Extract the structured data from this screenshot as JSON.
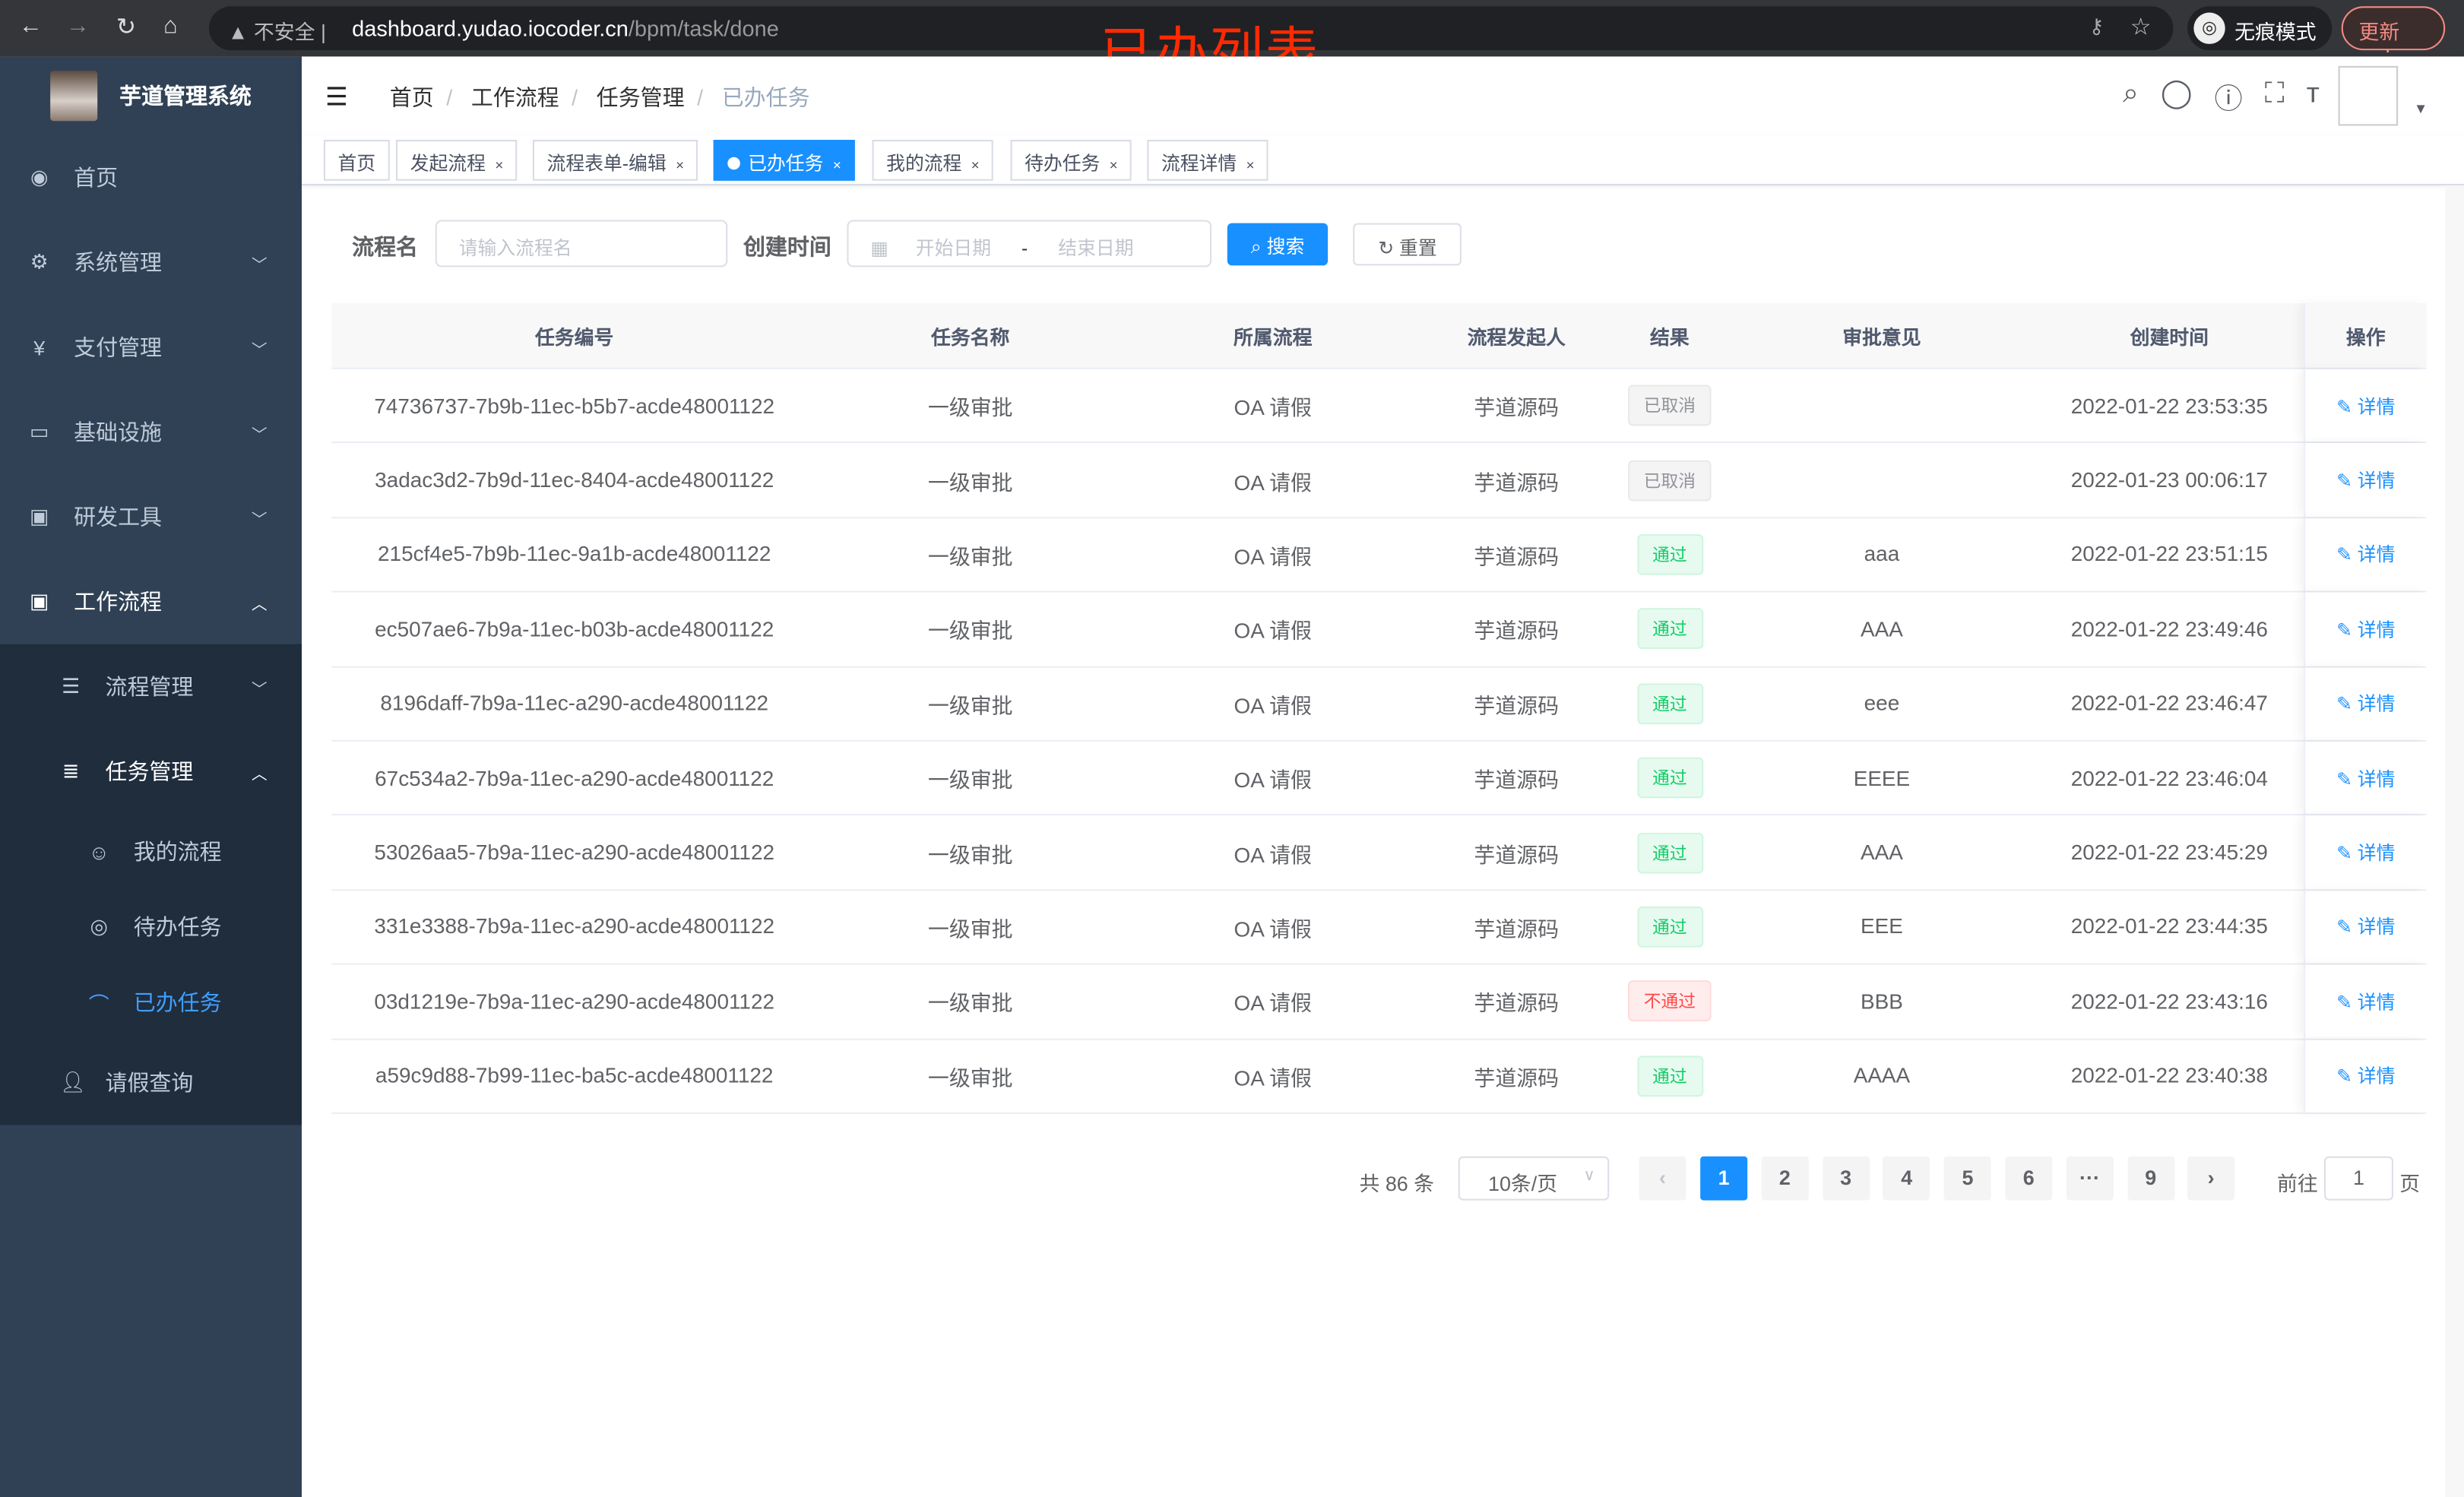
{
  "browser": {
    "back_icon": "arrow-left",
    "forward_icon": "arrow-right",
    "reload_icon": "reload",
    "home_icon": "home",
    "security": "不安全",
    "url_host": "dashboard.yudao.iocoder.cn",
    "url_path": "/bpm/task/done",
    "incognito": "无痕模式",
    "update": "更新"
  },
  "annotation": "已办列表",
  "sidebar": {
    "title": "芋道管理系统",
    "items": [
      {
        "label": "首页",
        "icon": "dashboard"
      },
      {
        "label": "系统管理",
        "icon": "gear"
      },
      {
        "label": "支付管理",
        "icon": "yen"
      },
      {
        "label": "基础设施",
        "icon": "monitor"
      },
      {
        "label": "研发工具",
        "icon": "toolbox"
      },
      {
        "label": "工作流程",
        "icon": "toolbox"
      }
    ],
    "workflow_children": [
      {
        "label": "流程管理",
        "icon": "tree-table"
      },
      {
        "label": "任务管理",
        "icon": "list"
      },
      {
        "label": "请假查询",
        "icon": "user"
      }
    ],
    "task_children": [
      {
        "label": "我的流程",
        "icon": "people"
      },
      {
        "label": "待办任务",
        "icon": "eye"
      },
      {
        "label": "已办任务",
        "icon": "education",
        "active": true
      }
    ]
  },
  "navbar": {
    "breadcrumb": [
      "首页",
      "工作流程",
      "任务管理",
      "已办任务"
    ]
  },
  "tags": [
    {
      "label": "首页"
    },
    {
      "label": "发起流程"
    },
    {
      "label": "流程表单-编辑"
    },
    {
      "label": "已办任务",
      "active": true
    },
    {
      "label": "我的流程"
    },
    {
      "label": "待办任务"
    },
    {
      "label": "流程详情"
    }
  ],
  "search": {
    "name_label": "流程名",
    "name_placeholder": "请输入流程名",
    "time_label": "创建时间",
    "start_placeholder": "开始日期",
    "range_sep": "-",
    "end_placeholder": "结束日期",
    "search_btn": "搜索",
    "reset_btn": "重置"
  },
  "table": {
    "columns": [
      "任务编号",
      "任务名称",
      "所属流程",
      "流程发起人",
      "结果",
      "审批意见",
      "创建时间",
      "操作"
    ],
    "rows": [
      [
        "74736737-7b9b-11ec-b5b7-acde48001122",
        "一级审批",
        "OA 请假",
        "芋道源码",
        "已取消",
        "",
        "2022-01-22 23:53:35",
        "详情"
      ],
      [
        "3adac3d2-7b9d-11ec-8404-acde48001122",
        "一级审批",
        "OA 请假",
        "芋道源码",
        "已取消",
        "",
        "2022-01-23 00:06:17",
        "详情"
      ],
      [
        "215cf4e5-7b9b-11ec-9a1b-acde48001122",
        "一级审批",
        "OA 请假",
        "芋道源码",
        "通过",
        "aaa",
        "2022-01-22 23:51:15",
        "详情"
      ],
      [
        "ec507ae6-7b9a-11ec-b03b-acde48001122",
        "一级审批",
        "OA 请假",
        "芋道源码",
        "通过",
        "AAA",
        "2022-01-22 23:49:46",
        "详情"
      ],
      [
        "8196daff-7b9a-11ec-a290-acde48001122",
        "一级审批",
        "OA 请假",
        "芋道源码",
        "通过",
        "eee",
        "2022-01-22 23:46:47",
        "详情"
      ],
      [
        "67c534a2-7b9a-11ec-a290-acde48001122",
        "一级审批",
        "OA 请假",
        "芋道源码",
        "通过",
        "EEEE",
        "2022-01-22 23:46:04",
        "详情"
      ],
      [
        "53026aa5-7b9a-11ec-a290-acde48001122",
        "一级审批",
        "OA 请假",
        "芋道源码",
        "通过",
        "AAA",
        "2022-01-22 23:45:29",
        "详情"
      ],
      [
        "331e3388-7b9a-11ec-a290-acde48001122",
        "一级审批",
        "OA 请假",
        "芋道源码",
        "通过",
        "EEE",
        "2022-01-22 23:44:35",
        "详情"
      ],
      [
        "03d1219e-7b9a-11ec-a290-acde48001122",
        "一级审批",
        "OA 请假",
        "芋道源码",
        "不通过",
        "BBB",
        "2022-01-22 23:43:16",
        "详情"
      ],
      [
        "a59c9d88-7b99-11ec-ba5c-acde48001122",
        "一级审批",
        "OA 请假",
        "芋道源码",
        "通过",
        "AAAA",
        "2022-01-22 23:40:38",
        "详情"
      ]
    ]
  },
  "pagination": {
    "total": "共 86 条",
    "page_size": "10条/页",
    "pages": [
      "1",
      "2",
      "3",
      "4",
      "5",
      "6",
      "···",
      "9"
    ],
    "current": "1",
    "goto_label": "前往",
    "goto_value": "1",
    "goto_suffix": "页"
  },
  "colors": {
    "primary": "#1890ff",
    "sidebar": "#304156",
    "submenu": "#1f2d3d",
    "success": "#13ce66",
    "danger": "#ff4949",
    "annotation": "#ff2a00"
  }
}
